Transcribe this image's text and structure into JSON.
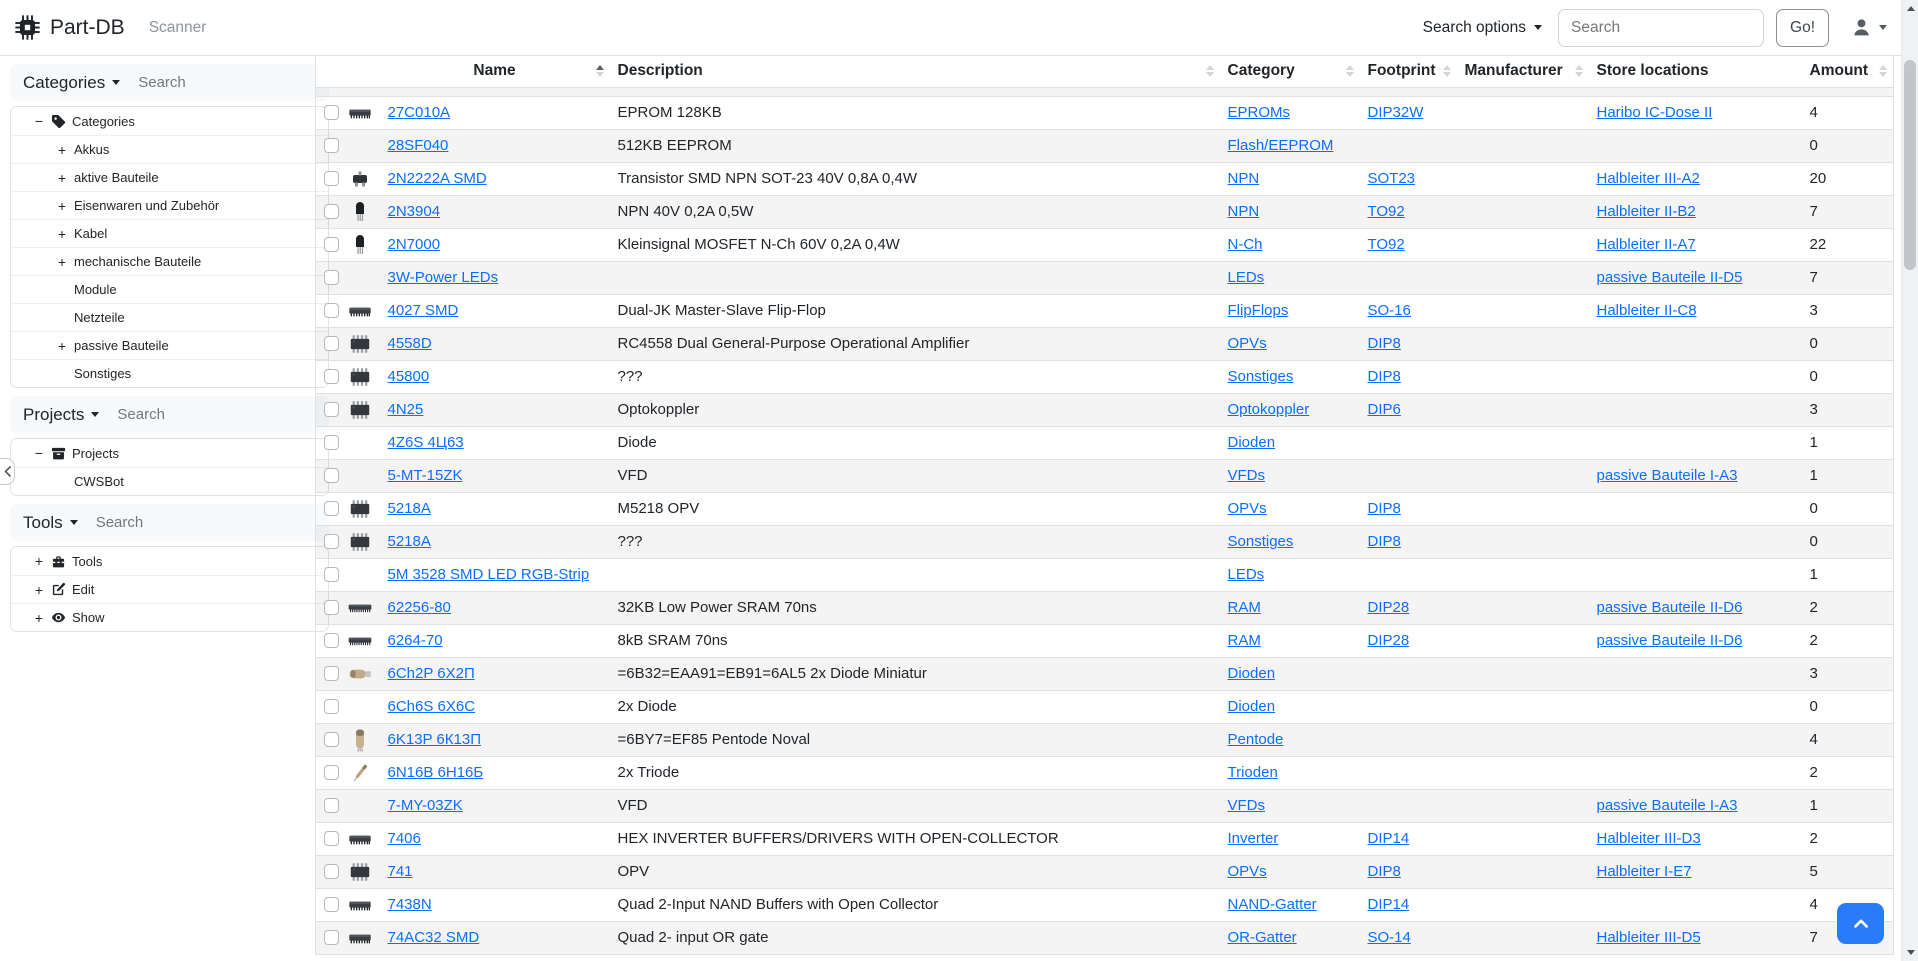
{
  "navbar": {
    "brand": "Part-DB",
    "brand_icon": "microchip-icon",
    "links": [
      {
        "label": "Scanner"
      }
    ],
    "search_options_label": "Search options",
    "search_placeholder": "Search",
    "go_button_label": "Go!",
    "user_menu_icon": "person-icon"
  },
  "sidebar": {
    "panels": [
      {
        "id": "categories",
        "title": "Categories",
        "search_placeholder": "Search",
        "tree": [
          {
            "toggle": "minus",
            "icon": "tag",
            "label": "Categories",
            "level": 0
          },
          {
            "toggle": "plus",
            "icon": "",
            "label": "Akkus",
            "level": 1
          },
          {
            "toggle": "plus",
            "icon": "",
            "label": "aktive Bauteile",
            "level": 1
          },
          {
            "toggle": "plus",
            "icon": "",
            "label": "Eisenwaren und Zubehör",
            "level": 1
          },
          {
            "toggle": "plus",
            "icon": "",
            "label": "Kabel",
            "level": 1
          },
          {
            "toggle": "plus",
            "icon": "",
            "label": "mechanische Bauteile",
            "level": 1
          },
          {
            "toggle": "none",
            "icon": "",
            "label": "Module",
            "level": 1
          },
          {
            "toggle": "none",
            "icon": "",
            "label": "Netzteile",
            "level": 1
          },
          {
            "toggle": "plus",
            "icon": "",
            "label": "passive Bauteile",
            "level": 1
          },
          {
            "toggle": "none",
            "icon": "",
            "label": "Sonstiges",
            "level": 1
          }
        ]
      },
      {
        "id": "projects",
        "title": "Projects",
        "search_placeholder": "Search",
        "tree": [
          {
            "toggle": "minus",
            "icon": "archive",
            "label": "Projects",
            "level": 0
          },
          {
            "toggle": "none",
            "icon": "",
            "label": "CWSBot",
            "level": 1
          }
        ]
      },
      {
        "id": "tools",
        "title": "Tools",
        "search_placeholder": "Search",
        "tree": [
          {
            "toggle": "plus",
            "icon": "toolbox",
            "label": "Tools",
            "level": 0
          },
          {
            "toggle": "plus",
            "icon": "pencil-square",
            "label": "Edit",
            "level": 0
          },
          {
            "toggle": "plus",
            "icon": "eye",
            "label": "Show",
            "level": 0
          }
        ]
      }
    ]
  },
  "table": {
    "columns": [
      {
        "key": "select",
        "label": "",
        "sortable": false
      },
      {
        "key": "image",
        "label": "",
        "sortable": false
      },
      {
        "key": "name",
        "label": "Name",
        "sortable": true,
        "sorted": "asc"
      },
      {
        "key": "description",
        "label": "Description",
        "sortable": true
      },
      {
        "key": "category",
        "label": "Category",
        "sortable": true
      },
      {
        "key": "footprint",
        "label": "Footprint",
        "sortable": true
      },
      {
        "key": "manufacturer",
        "label": "Manufacturer",
        "sortable": true
      },
      {
        "key": "store_locations",
        "label": "Store locations",
        "sortable": false
      },
      {
        "key": "amount",
        "label": "Amount",
        "sortable": true
      }
    ],
    "rows": [
      {
        "image": "dip-chip",
        "name": "27C010A",
        "description": "EPROM 128KB",
        "category": "EPROMs",
        "footprint": "DIP32W",
        "manufacturer": "",
        "store_location": "Haribo IC-Dose II",
        "amount": "4"
      },
      {
        "image": "",
        "name": "28SF040",
        "description": "512KB EEPROM",
        "category": "Flash/EEPROM",
        "footprint": "",
        "manufacturer": "",
        "store_location": "",
        "amount": "0"
      },
      {
        "image": "sot23",
        "name": "2N2222A SMD",
        "description": "Transistor SMD NPN SOT-23 40V 0,8A 0,4W",
        "category": "NPN",
        "footprint": "SOT23",
        "manufacturer": "",
        "store_location": "Halbleiter III-A2",
        "amount": "20"
      },
      {
        "image": "to92",
        "name": "2N3904",
        "description": "NPN 40V 0,2A 0,5W",
        "category": "NPN",
        "footprint": "TO92",
        "manufacturer": "",
        "store_location": "Halbleiter II-B2",
        "amount": "7"
      },
      {
        "image": "to92",
        "name": "2N7000",
        "description": "Kleinsignal MOSFET N-Ch 60V 0,2A 0,4W",
        "category": "N-Ch",
        "footprint": "TO92",
        "manufacturer": "",
        "store_location": "Halbleiter II-A7",
        "amount": "22"
      },
      {
        "image": "",
        "name": "3W-Power LEDs",
        "description": "",
        "category": "LEDs",
        "footprint": "",
        "manufacturer": "",
        "store_location": "passive Bauteile II-D5",
        "amount": "7"
      },
      {
        "image": "dip-chip",
        "name": "4027 SMD",
        "description": "Dual-JK Master-Slave Flip-Flop",
        "category": "FlipFlops",
        "footprint": "SO-16",
        "manufacturer": "",
        "store_location": "Halbleiter II-C8",
        "amount": "3"
      },
      {
        "image": "dip8",
        "name": "4558D",
        "description": "RC4558 Dual General-Purpose Operational Amplifier",
        "category": "OPVs",
        "footprint": "DIP8",
        "manufacturer": "",
        "store_location": "",
        "amount": "0"
      },
      {
        "image": "dip8",
        "name": "45800",
        "description": "???",
        "category": "Sonstiges",
        "footprint": "DIP8",
        "manufacturer": "",
        "store_location": "",
        "amount": "0"
      },
      {
        "image": "dip8",
        "name": "4N25",
        "description": "Optokoppler",
        "category": "Optokoppler",
        "footprint": "DIP6",
        "manufacturer": "",
        "store_location": "",
        "amount": "3"
      },
      {
        "image": "",
        "name": "4Z6S 4Ц63",
        "description": "Diode",
        "category": "Dioden",
        "footprint": "",
        "manufacturer": "",
        "store_location": "",
        "amount": "1"
      },
      {
        "image": "",
        "name": "5-MT-15ZK",
        "description": "VFD",
        "category": "VFDs",
        "footprint": "",
        "manufacturer": "",
        "store_location": "passive Bauteile I-A3",
        "amount": "1"
      },
      {
        "image": "dip8",
        "name": "5218A",
        "description": "M5218 OPV",
        "category": "OPVs",
        "footprint": "DIP8",
        "manufacturer": "",
        "store_location": "",
        "amount": "0"
      },
      {
        "image": "dip8",
        "name": "5218A",
        "description": "???",
        "category": "Sonstiges",
        "footprint": "DIP8",
        "manufacturer": "",
        "store_location": "",
        "amount": "0"
      },
      {
        "image": "",
        "name": "5M 3528 SMD LED RGB-Strip",
        "description": "",
        "category": "LEDs",
        "footprint": "",
        "manufacturer": "",
        "store_location": "",
        "amount": "1"
      },
      {
        "image": "dip-chip-long",
        "name": "62256-80",
        "description": "32KB Low Power SRAM 70ns",
        "category": "RAM",
        "footprint": "DIP28",
        "manufacturer": "",
        "store_location": "passive Bauteile II-D6",
        "amount": "2"
      },
      {
        "image": "dip-chip-long",
        "name": "6264-70",
        "description": "8kB SRAM 70ns",
        "category": "RAM",
        "footprint": "DIP28",
        "manufacturer": "",
        "store_location": "passive Bauteile II-D6",
        "amount": "2"
      },
      {
        "image": "tube-horizontal",
        "name": "6Ch2P 6Х2П",
        "description": "=6B32=EAA91=EB91=6AL5 2x Diode Miniatur",
        "category": "Dioden",
        "footprint": "",
        "manufacturer": "",
        "store_location": "",
        "amount": "3"
      },
      {
        "image": "",
        "name": "6Ch6S 6Х6С",
        "description": "2x Diode",
        "category": "Dioden",
        "footprint": "",
        "manufacturer": "",
        "store_location": "",
        "amount": "0"
      },
      {
        "image": "tube",
        "name": "6K13P 6К13П",
        "description": "=6BY7=EF85 Pentode Noval",
        "category": "Pentode",
        "footprint": "",
        "manufacturer": "",
        "store_location": "",
        "amount": "4"
      },
      {
        "image": "tube-small",
        "name": "6N16B 6Н16Б",
        "description": "2x Triode",
        "category": "Trioden",
        "footprint": "",
        "manufacturer": "",
        "store_location": "",
        "amount": "2"
      },
      {
        "image": "",
        "name": "7-MY-03ZK",
        "description": "VFD",
        "category": "VFDs",
        "footprint": "",
        "manufacturer": "",
        "store_location": "passive Bauteile I-A3",
        "amount": "1"
      },
      {
        "image": "dip-chip",
        "name": "7406",
        "description": "HEX INVERTER BUFFERS/DRIVERS WITH OPEN-COLLECTOR",
        "category": "Inverter",
        "footprint": "DIP14",
        "manufacturer": "",
        "store_location": "Halbleiter III-D3",
        "amount": "2"
      },
      {
        "image": "dip8",
        "name": "741",
        "description": "OPV",
        "category": "OPVs",
        "footprint": "DIP8",
        "manufacturer": "",
        "store_location": "Halbleiter I-E7",
        "amount": "5"
      },
      {
        "image": "dip-chip",
        "name": "7438N",
        "description": "Quad 2-Input NAND Buffers with Open Collector",
        "category": "NAND-Gatter",
        "footprint": "DIP14",
        "manufacturer": "",
        "store_location": "",
        "amount": "4"
      },
      {
        "image": "dip-chip",
        "name": "74AC32 SMD",
        "description": "Quad 2- input OR gate",
        "category": "OR-Gatter",
        "footprint": "SO-14",
        "manufacturer": "",
        "store_location": "Halbleiter III-D5",
        "amount": "7"
      }
    ]
  },
  "floating": {
    "back_to_top_icon": "chevron-up-icon"
  },
  "colors": {
    "link": "#0d6efd",
    "primary": "#2b7af9",
    "border": "#dee2e6",
    "stripe_bg": "#f2f3f3",
    "panel_bg": "#f8f9fa"
  }
}
